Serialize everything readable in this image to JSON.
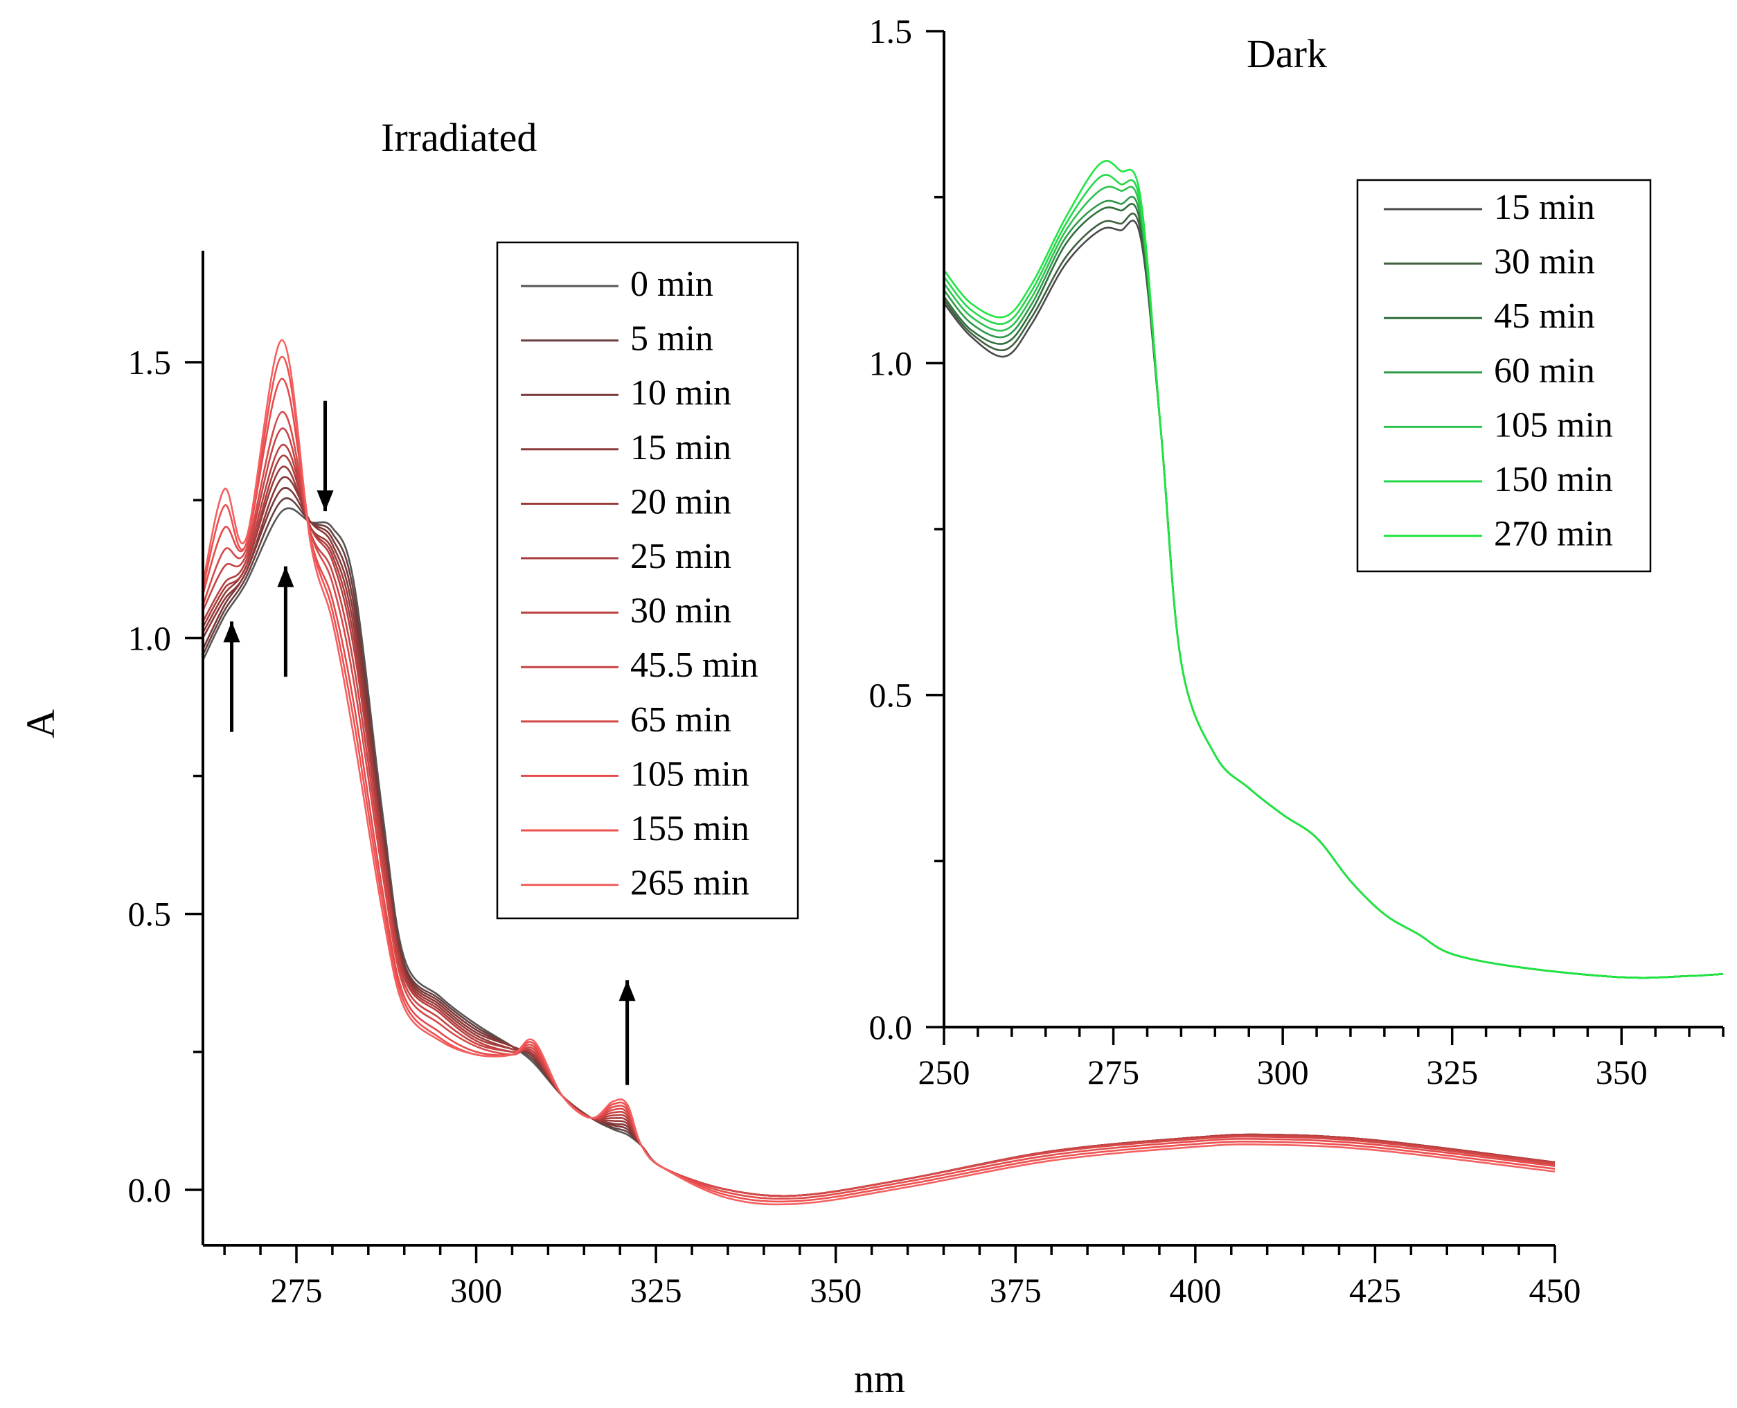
{
  "chart_data": [
    {
      "type": "line",
      "title": "Irradiated",
      "xlabel": "nm",
      "ylabel": "A",
      "xlim": [
        262,
        450
      ],
      "ylim": [
        -0.1,
        1.7
      ],
      "xticks": [
        275,
        300,
        325,
        350,
        375,
        400,
        425,
        450
      ],
      "xtick_labels": [
        "275",
        "300",
        "325",
        "350",
        "375",
        "400",
        "425",
        "450"
      ],
      "yticks": [
        0.0,
        0.5,
        1.0,
        1.5
      ],
      "ytick_labels": [
        "0.0",
        "0.5",
        "1.0",
        "1.5"
      ],
      "anchor_x": [
        262,
        265,
        268,
        273,
        277,
        280,
        283,
        287,
        290,
        295,
        300,
        305,
        308,
        312,
        316,
        319,
        321,
        323,
        326,
        335,
        345,
        360,
        380,
        400,
        410,
        425,
        450
      ],
      "series": [
        {
          "name": "0 min",
          "color": "#555555",
          "values": [
            0.96,
            1.04,
            1.1,
            1.23,
            1.21,
            1.2,
            1.1,
            0.68,
            0.42,
            0.35,
            0.3,
            0.26,
            0.23,
            0.17,
            0.13,
            0.11,
            0.1,
            0.08,
            0.04,
            0.0,
            -0.01,
            0.02,
            0.07,
            0.095,
            0.1,
            0.09,
            0.05
          ]
        },
        {
          "name": "5 min",
          "color": "#6a3f3f",
          "values": [
            0.97,
            1.05,
            1.11,
            1.25,
            1.21,
            1.19,
            1.08,
            0.66,
            0.41,
            0.345,
            0.295,
            0.26,
            0.235,
            0.17,
            0.13,
            0.113,
            0.105,
            0.08,
            0.04,
            0.0,
            -0.01,
            0.02,
            0.07,
            0.095,
            0.1,
            0.09,
            0.05
          ]
        },
        {
          "name": "10 min",
          "color": "#7a3838",
          "values": [
            0.98,
            1.06,
            1.12,
            1.27,
            1.21,
            1.18,
            1.06,
            0.65,
            0.405,
            0.34,
            0.29,
            0.26,
            0.24,
            0.17,
            0.13,
            0.117,
            0.11,
            0.08,
            0.04,
            0.0,
            -0.01,
            0.02,
            0.07,
            0.095,
            0.1,
            0.09,
            0.05
          ]
        },
        {
          "name": "15 min",
          "color": "#8a3838",
          "values": [
            1.0,
            1.07,
            1.12,
            1.29,
            1.21,
            1.17,
            1.04,
            0.64,
            0.4,
            0.335,
            0.285,
            0.26,
            0.24,
            0.17,
            0.13,
            0.12,
            0.115,
            0.08,
            0.04,
            0.0,
            -0.01,
            0.02,
            0.07,
            0.095,
            0.1,
            0.09,
            0.05
          ]
        },
        {
          "name": "20 min",
          "color": "#9a3b3b",
          "values": [
            1.01,
            1.08,
            1.13,
            1.31,
            1.2,
            1.16,
            1.02,
            0.63,
            0.395,
            0.33,
            0.28,
            0.255,
            0.245,
            0.17,
            0.13,
            0.125,
            0.12,
            0.08,
            0.04,
            0.0,
            -0.01,
            0.02,
            0.07,
            0.095,
            0.1,
            0.09,
            0.05
          ]
        },
        {
          "name": "25 min",
          "color": "#aa3d3d",
          "values": [
            1.02,
            1.09,
            1.13,
            1.33,
            1.2,
            1.15,
            1.0,
            0.62,
            0.39,
            0.325,
            0.275,
            0.255,
            0.245,
            0.17,
            0.13,
            0.13,
            0.125,
            0.08,
            0.04,
            0.0,
            -0.01,
            0.02,
            0.07,
            0.095,
            0.1,
            0.09,
            0.05
          ]
        },
        {
          "name": "30 min",
          "color": "#ba4040",
          "values": [
            1.03,
            1.1,
            1.14,
            1.35,
            1.2,
            1.14,
            0.98,
            0.61,
            0.385,
            0.32,
            0.27,
            0.25,
            0.25,
            0.17,
            0.13,
            0.135,
            0.13,
            0.08,
            0.04,
            0.0,
            -0.01,
            0.02,
            0.07,
            0.095,
            0.1,
            0.09,
            0.05
          ]
        },
        {
          "name": "45.5 min",
          "color": "#c84444",
          "values": [
            1.05,
            1.13,
            1.15,
            1.38,
            1.19,
            1.12,
            0.95,
            0.59,
            0.375,
            0.31,
            0.265,
            0.25,
            0.25,
            0.17,
            0.13,
            0.14,
            0.135,
            0.08,
            0.04,
            0.0,
            -0.01,
            0.02,
            0.07,
            0.093,
            0.098,
            0.088,
            0.048
          ]
        },
        {
          "name": "65 min",
          "color": "#d64848",
          "values": [
            1.06,
            1.16,
            1.16,
            1.41,
            1.19,
            1.1,
            0.92,
            0.57,
            0.365,
            0.3,
            0.26,
            0.245,
            0.255,
            0.17,
            0.13,
            0.145,
            0.14,
            0.08,
            0.04,
            0.0,
            -0.01,
            0.02,
            0.068,
            0.092,
            0.096,
            0.086,
            0.046
          ]
        },
        {
          "name": "105 min",
          "color": "#e44a4a",
          "values": [
            1.08,
            1.2,
            1.17,
            1.47,
            1.18,
            1.07,
            0.88,
            0.54,
            0.35,
            0.285,
            0.25,
            0.245,
            0.26,
            0.17,
            0.13,
            0.15,
            0.145,
            0.08,
            0.04,
            -0.005,
            -0.015,
            0.015,
            0.063,
            0.088,
            0.092,
            0.082,
            0.043
          ]
        },
        {
          "name": "155 min",
          "color": "#ee5050",
          "values": [
            1.09,
            1.24,
            1.17,
            1.51,
            1.18,
            1.05,
            0.85,
            0.52,
            0.34,
            0.275,
            0.245,
            0.245,
            0.265,
            0.17,
            0.13,
            0.155,
            0.15,
            0.08,
            0.04,
            -0.01,
            -0.02,
            0.01,
            0.058,
            0.083,
            0.087,
            0.077,
            0.038
          ]
        },
        {
          "name": "265 min",
          "color": "#f46060",
          "values": [
            1.1,
            1.27,
            1.18,
            1.54,
            1.17,
            1.03,
            0.82,
            0.5,
            0.33,
            0.27,
            0.245,
            0.245,
            0.27,
            0.17,
            0.13,
            0.16,
            0.155,
            0.08,
            0.04,
            -0.015,
            -0.025,
            0.005,
            0.053,
            0.078,
            0.082,
            0.072,
            0.033
          ]
        }
      ],
      "annotations": [
        "up arrow at 266 nm",
        "up arrow at 273.5 nm",
        "down arrow at 279 nm",
        "up arrow at 321 nm"
      ],
      "legend": "top-right"
    },
    {
      "type": "line",
      "title": "Dark",
      "xlabel": "",
      "ylabel": "",
      "xlim": [
        250,
        365
      ],
      "ylim": [
        0.0,
        1.5
      ],
      "xticks": [
        250,
        275,
        300,
        325,
        350
      ],
      "xtick_labels": [
        "250",
        "275",
        "300",
        "325",
        "350"
      ],
      "yticks": [
        0.0,
        0.5,
        1.0,
        1.5
      ],
      "ytick_labels": [
        "0.0",
        "0.5",
        "1.0",
        "1.5"
      ],
      "anchor_x": [
        250,
        254,
        259,
        263,
        268,
        273,
        276,
        279,
        282,
        285,
        290,
        295,
        300,
        305,
        310,
        315,
        320,
        325,
        335,
        350,
        360,
        365
      ],
      "series": [
        {
          "name": "15 min",
          "color": "#4a4a4a",
          "values": [
            1.09,
            1.04,
            1.01,
            1.06,
            1.15,
            1.2,
            1.2,
            1.19,
            0.9,
            0.55,
            0.41,
            0.36,
            0.32,
            0.285,
            0.22,
            0.17,
            0.14,
            0.11,
            0.09,
            0.075,
            0.077,
            0.08
          ]
        },
        {
          "name": "30 min",
          "color": "#3f5f3f",
          "values": [
            1.095,
            1.045,
            1.02,
            1.07,
            1.16,
            1.21,
            1.21,
            1.2,
            0.9,
            0.55,
            0.41,
            0.36,
            0.32,
            0.285,
            0.22,
            0.17,
            0.14,
            0.11,
            0.09,
            0.075,
            0.077,
            0.08
          ]
        },
        {
          "name": "45 min",
          "color": "#2e6e3a",
          "values": [
            1.1,
            1.05,
            1.03,
            1.08,
            1.18,
            1.23,
            1.23,
            1.21,
            0.9,
            0.55,
            0.41,
            0.36,
            0.32,
            0.285,
            0.22,
            0.17,
            0.14,
            0.11,
            0.09,
            0.075,
            0.077,
            0.08
          ]
        },
        {
          "name": "60 min",
          "color": "#2f9a4a",
          "values": [
            1.11,
            1.06,
            1.04,
            1.09,
            1.19,
            1.24,
            1.24,
            1.22,
            0.9,
            0.55,
            0.41,
            0.36,
            0.32,
            0.285,
            0.22,
            0.17,
            0.14,
            0.11,
            0.09,
            0.075,
            0.077,
            0.08
          ]
        },
        {
          "name": "105 min",
          "color": "#2ec250",
          "values": [
            1.12,
            1.07,
            1.05,
            1.1,
            1.2,
            1.26,
            1.26,
            1.23,
            0.9,
            0.55,
            0.41,
            0.36,
            0.32,
            0.285,
            0.22,
            0.17,
            0.14,
            0.11,
            0.09,
            0.075,
            0.077,
            0.08
          ]
        },
        {
          "name": "150 min",
          "color": "#24d84a",
          "values": [
            1.13,
            1.08,
            1.06,
            1.11,
            1.21,
            1.28,
            1.27,
            1.24,
            0.9,
            0.55,
            0.41,
            0.36,
            0.32,
            0.285,
            0.22,
            0.17,
            0.14,
            0.11,
            0.09,
            0.075,
            0.077,
            0.08
          ]
        },
        {
          "name": "270 min",
          "color": "#1ee640",
          "values": [
            1.14,
            1.09,
            1.07,
            1.12,
            1.22,
            1.3,
            1.29,
            1.25,
            0.9,
            0.55,
            0.41,
            0.36,
            0.32,
            0.285,
            0.22,
            0.17,
            0.14,
            0.11,
            0.09,
            0.075,
            0.077,
            0.08
          ]
        }
      ],
      "legend": "top-right"
    }
  ]
}
